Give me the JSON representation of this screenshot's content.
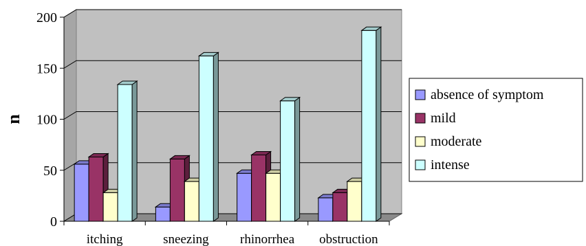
{
  "chart_data": {
    "type": "bar",
    "title": "",
    "xlabel": "",
    "ylabel": "n",
    "ylim": [
      0,
      200
    ],
    "yticks": [
      0,
      50,
      100,
      150,
      200
    ],
    "grid": true,
    "legend_position": "right",
    "categories": [
      "itching",
      "sneezing",
      "rhinorrhea",
      "obstruction"
    ],
    "series": [
      {
        "name": "absence of symptom",
        "color": "#9999ff",
        "values": [
          56,
          14,
          47,
          23
        ]
      },
      {
        "name": "mild",
        "color": "#993366",
        "values": [
          63,
          61,
          65,
          28
        ]
      },
      {
        "name": "moderate",
        "color": "#ffffcc",
        "values": [
          28,
          39,
          47,
          39
        ]
      },
      {
        "name": "intense",
        "color": "#ccffff",
        "values": [
          134,
          162,
          118,
          187
        ]
      }
    ],
    "background_color": "#c0c0c0"
  }
}
